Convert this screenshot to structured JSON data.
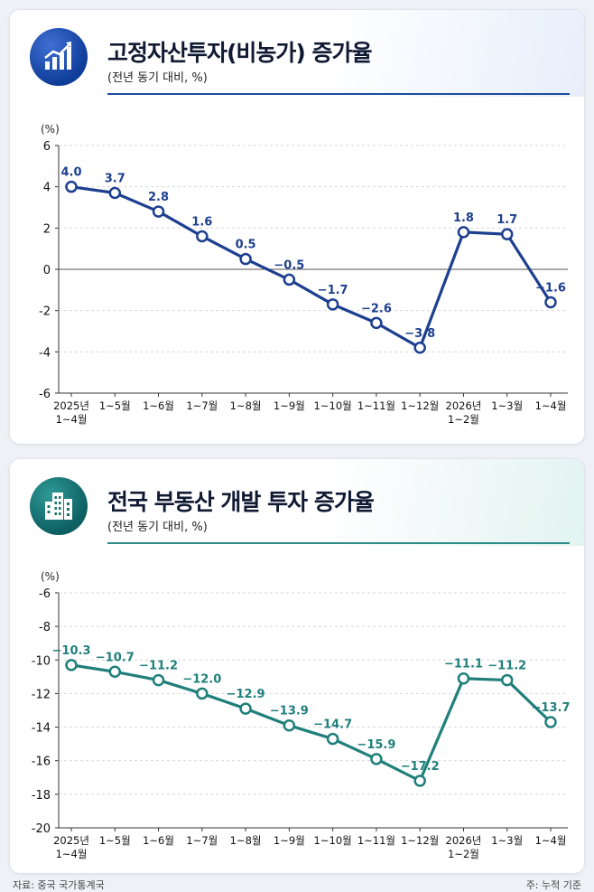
{
  "charts": {
    "top": {
      "title": "고정자산투자(비농가) 증가율",
      "subtitle": "(전년 동기 대비, %)",
      "unit": "(%)",
      "color": "#1d3f8f"
    },
    "bottom": {
      "title": "전국 부동산 개발 투자 증가율",
      "subtitle": "(전년 동기 대비, %)",
      "unit": "(%)",
      "color": "#1f7f7b"
    }
  },
  "chart_data": [
    {
      "type": "line",
      "title": "고정자산투자(비농가) 증가율",
      "subtitle": "(전년 동기 대비, %)",
      "ylabel": "(%)",
      "categories": [
        [
          "2025년",
          "1~4월"
        ],
        [
          "1~5월"
        ],
        [
          "1~6월"
        ],
        [
          "1~7월"
        ],
        [
          "1~8월"
        ],
        [
          "1~9월"
        ],
        [
          "1~10월"
        ],
        [
          "1~11월"
        ],
        [
          "1~12월"
        ],
        [
          "2026년",
          "1~2월"
        ],
        [
          "1~3월"
        ],
        [
          "1~4월"
        ]
      ],
      "values": [
        4.0,
        3.7,
        2.8,
        1.6,
        0.5,
        -0.5,
        -1.7,
        -2.6,
        -3.8,
        1.8,
        1.7,
        -1.6
      ],
      "labels": [
        "4.0",
        "3.7",
        "2.8",
        "1.6",
        "0.5",
        "−0.5",
        "−1.7",
        "−2.6",
        "−3.8",
        "1.8",
        "1.7",
        "−1.6"
      ],
      "ylim": [
        -6,
        6
      ],
      "yticks": [
        6,
        4,
        2,
        0,
        -2,
        -4,
        -6
      ],
      "yticklabels": [
        "6",
        "4",
        "2",
        "0",
        "-2",
        "-4",
        "-6"
      ],
      "zero_line": true,
      "grid": true
    },
    {
      "type": "line",
      "title": "전국 부동산 개발 투자 증가율",
      "subtitle": "(전년 동기 대비, %)",
      "ylabel": "(%)",
      "categories": [
        [
          "2025년",
          "1~4월"
        ],
        [
          "1~5월"
        ],
        [
          "1~6월"
        ],
        [
          "1~7월"
        ],
        [
          "1~8월"
        ],
        [
          "1~9월"
        ],
        [
          "1~10월"
        ],
        [
          "1~11월"
        ],
        [
          "1~12월"
        ],
        [
          "2026년",
          "1~2월"
        ],
        [
          "1~3월"
        ],
        [
          "1~4월"
        ]
      ],
      "values": [
        -10.3,
        -10.7,
        -11.2,
        -12.0,
        -12.9,
        -13.9,
        -14.7,
        -15.9,
        -17.2,
        -11.1,
        -11.2,
        -13.7
      ],
      "labels": [
        "−10.3",
        "−10.7",
        "−11.2",
        "−12.0",
        "−12.9",
        "−13.9",
        "−14.7",
        "−15.9",
        "−17.2",
        "−11.1",
        "−11.2",
        "−13.7"
      ],
      "ylim": [
        -20,
        -6
      ],
      "yticks": [
        -6,
        -8,
        -10,
        -12,
        -14,
        -16,
        -18,
        -20
      ],
      "yticklabels": [
        "-6",
        "-8",
        "-10",
        "-12",
        "-14",
        "-16",
        "-18",
        "-20"
      ],
      "zero_line": false,
      "grid": true
    }
  ],
  "footer": {
    "source": "자료: 중국 국가통계국",
    "note": "주: 누적 기준"
  }
}
